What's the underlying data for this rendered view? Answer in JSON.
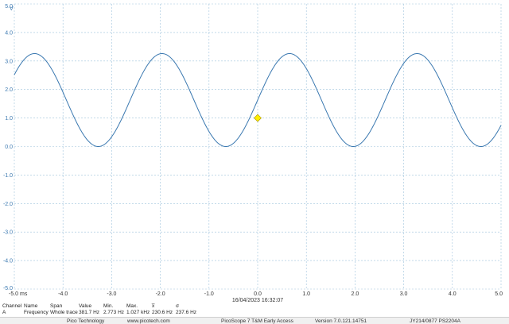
{
  "chart_data": {
    "type": "line",
    "x_unit": "ms",
    "y_unit": "V",
    "xlim": [
      -5.0,
      5.0
    ],
    "ylim": [
      -5.0,
      5.0
    ],
    "x_ticks": [
      "-5.0 ms",
      "-4.0",
      "-3.0",
      "-2.0",
      "-1.0",
      "0.0",
      "1.0",
      "2.0",
      "3.0",
      "4.0",
      "5.0"
    ],
    "y_ticks": [
      "5.0",
      "4.0",
      "3.0",
      "2.0",
      "1.0",
      "0.0",
      "-1.0",
      "-2.0",
      "-3.0",
      "-4.0",
      "-5.0"
    ],
    "grid": true,
    "series": [
      {
        "name": "A",
        "color": "#3a78b0",
        "waveform": "sine",
        "offset": 1.63,
        "amplitude": 1.63,
        "frequency_hz": 381.7,
        "phase_at_zero_ms": 0.0
      }
    ],
    "trigger_marker": {
      "x": 0.0,
      "y": 1.0,
      "color": "#ffee00"
    }
  },
  "timestamp": "16/04/2023 16:32:07",
  "measurements": {
    "headers": [
      "Channel",
      "Name",
      "Span",
      "Value",
      "Min.",
      "Max.",
      "x̅",
      "σ"
    ],
    "row": [
      "A",
      "Frequency",
      "Whole trace",
      "381.7 Hz",
      "2.773 Hz",
      "1.027 kHz",
      "230.6 Hz",
      "237.6 Hz"
    ]
  },
  "footer": {
    "company": "Pico Technology",
    "website": "www.picotech.com",
    "product": "PicoScope 7 T&M Early Access",
    "version": "Version 7.0.121.14751",
    "device": "JY214/0877 PS2204A"
  }
}
